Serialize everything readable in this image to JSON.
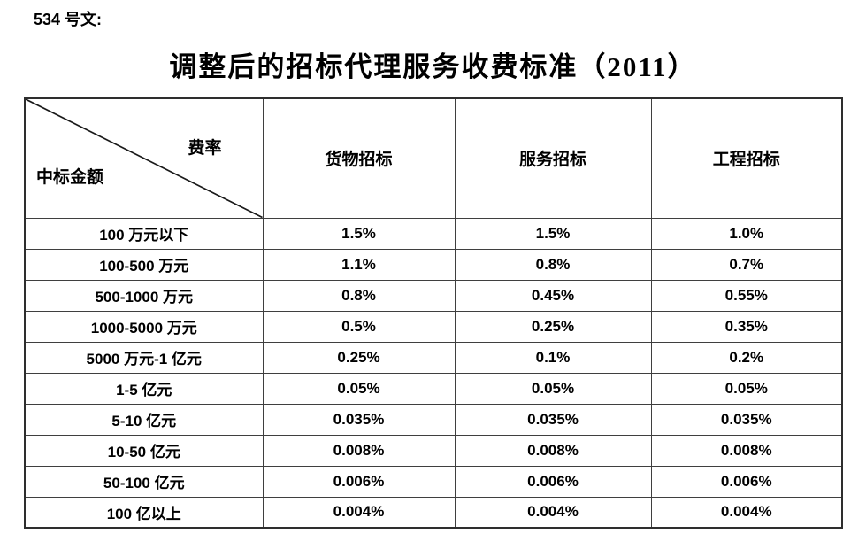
{
  "doc": {
    "label": "534 号文:",
    "title": "调整后的招标代理服务收费标准（2011）"
  },
  "table": {
    "corner": {
      "top_right": "费率",
      "bottom_left": "中标金额"
    },
    "columns": [
      "货物招标",
      "服务招标",
      "工程招标"
    ],
    "rows": [
      {
        "label": "100 万元以下",
        "values": [
          "1.5%",
          "1.5%",
          "1.0%"
        ]
      },
      {
        "label": "100-500 万元",
        "values": [
          "1.1%",
          "0.8%",
          "0.7%"
        ]
      },
      {
        "label": "500-1000 万元",
        "values": [
          "0.8%",
          "0.45%",
          "0.55%"
        ]
      },
      {
        "label": "1000-5000 万元",
        "values": [
          "0.5%",
          "0.25%",
          "0.35%"
        ]
      },
      {
        "label": "5000 万元-1 亿元",
        "values": [
          "0.25%",
          "0.1%",
          "0.2%"
        ]
      },
      {
        "label": "1-5 亿元",
        "values": [
          "0.05%",
          "0.05%",
          "0.05%"
        ]
      },
      {
        "label": "5-10 亿元",
        "values": [
          "0.035%",
          "0.035%",
          "0.035%"
        ]
      },
      {
        "label": "10-50 亿元",
        "values": [
          "0.008%",
          "0.008%",
          "0.008%"
        ]
      },
      {
        "label": "50-100 亿元",
        "values": [
          "0.006%",
          "0.006%",
          "0.006%"
        ]
      },
      {
        "label": "100 亿以上",
        "values": [
          "0.004%",
          "0.004%",
          "0.004%"
        ]
      }
    ]
  },
  "colors": {
    "text": "#000000",
    "border": "#3f3f3f",
    "outer_border": "#2e2e2e",
    "background": "#ffffff"
  }
}
